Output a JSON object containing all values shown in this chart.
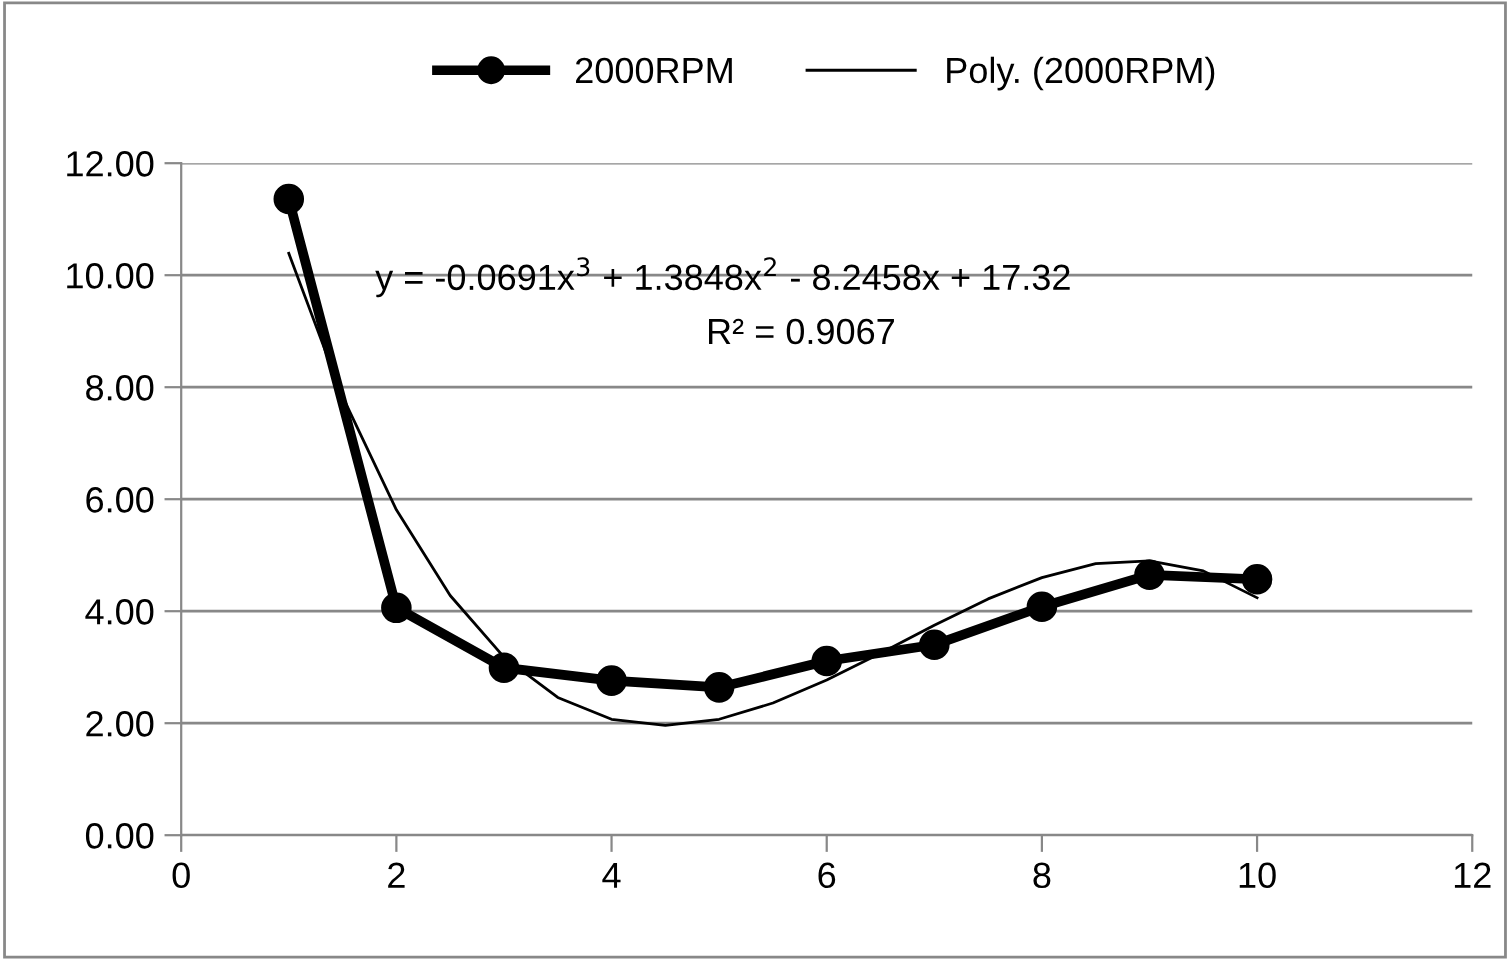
{
  "chart_data": {
    "type": "line",
    "x": [
      1,
      2,
      3,
      4,
      5,
      6,
      7,
      8,
      9,
      10
    ],
    "series": [
      {
        "name": "2000RPM",
        "color": "#000000",
        "marker": "circle",
        "values": [
          11.36,
          4.06,
          2.99,
          2.76,
          2.64,
          3.11,
          3.4,
          4.08,
          4.65,
          4.57
        ]
      },
      {
        "name": "Poly. (2000RPM)",
        "color": "#000000",
        "marker": "none",
        "x": [
          1,
          1.5,
          2,
          2.5,
          3,
          3.5,
          4,
          4.5,
          5,
          5.5,
          6,
          6.5,
          7,
          7.5,
          8,
          8.5,
          9,
          9.5,
          10
        ],
        "values": [
          10.39,
          7.83,
          5.81,
          4.28,
          3.18,
          2.46,
          2.07,
          1.96,
          2.07,
          2.36,
          2.77,
          3.25,
          3.75,
          4.22,
          4.6,
          4.85,
          4.9,
          4.72,
          4.24
        ]
      }
    ],
    "xlim": [
      0,
      12
    ],
    "xticks": [
      0,
      2,
      4,
      6,
      8,
      10,
      12
    ],
    "ylim": [
      0,
      12
    ],
    "yticks": [
      {
        "value": 0,
        "label": "0.00"
      },
      {
        "value": 2,
        "label": "2.00"
      },
      {
        "value": 4,
        "label": "4.00"
      },
      {
        "value": 6,
        "label": "6.00"
      },
      {
        "value": 8,
        "label": "8.00"
      },
      {
        "value": 10,
        "label": "10.00"
      },
      {
        "value": 12,
        "label": "12.00"
      }
    ],
    "grid": "y",
    "legend": "top",
    "line_style": "solid",
    "annotations": [
      "y = -0.0691x$^{3}$ + 1.3848x$^{2}$ - 8.2458x + 17.32",
      "R² = 0.9067"
    ]
  }
}
